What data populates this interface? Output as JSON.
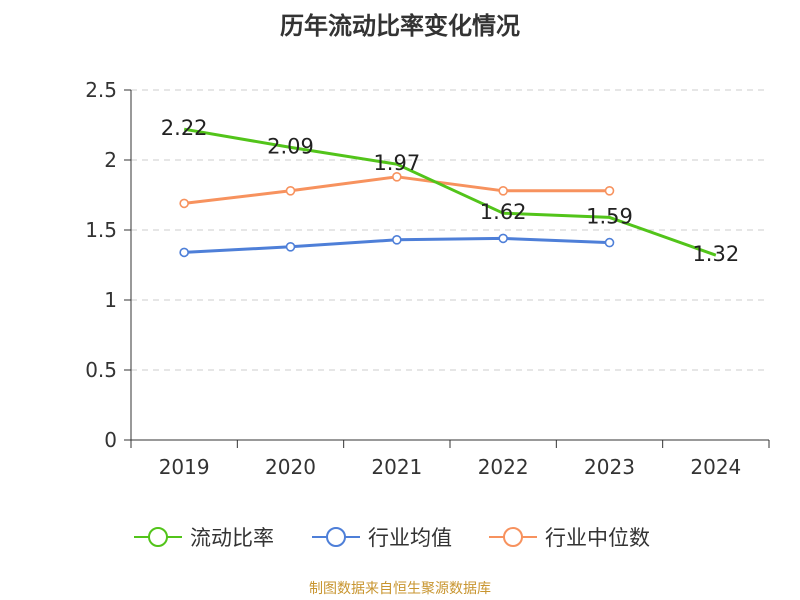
{
  "title": "历年流动比率变化情况",
  "source": "制图数据来自恒生聚源数据库",
  "colors": {
    "current_ratio": "#52c41a",
    "industry_mean": "#4e7fd8",
    "industry_median": "#f7925e",
    "grid": "#cccccc",
    "axis": "#333333"
  },
  "legend": [
    {
      "label": "流动比率",
      "color": "#52c41a"
    },
    {
      "label": "行业均值",
      "color": "#4e7fd8"
    },
    {
      "label": "行业中位数",
      "color": "#f7925e"
    }
  ],
  "chart_data": {
    "type": "line",
    "title": "历年流动比率变化情况",
    "categories": [
      "2019",
      "2020",
      "2021",
      "2022",
      "2023",
      "2024"
    ],
    "ylim": [
      0,
      2.5
    ],
    "yticks": [
      "0",
      "0.5",
      "1",
      "1.5",
      "2",
      "2.5"
    ],
    "grid": true,
    "legend_position": "bottom",
    "series": [
      {
        "name": "流动比率",
        "color": "#52c41a",
        "values": [
          2.22,
          2.09,
          1.97,
          1.62,
          1.59,
          1.32
        ],
        "labels": [
          "2.22",
          "2.09",
          "1.97",
          "1.62",
          "1.59",
          "1.32"
        ],
        "markers": false
      },
      {
        "name": "行业均值",
        "color": "#4e7fd8",
        "values": [
          1.34,
          1.38,
          1.43,
          1.44,
          1.41,
          null
        ],
        "markers": true
      },
      {
        "name": "行业中位数",
        "color": "#f7925e",
        "values": [
          1.69,
          1.78,
          1.88,
          1.78,
          1.78,
          null
        ],
        "markers": true
      }
    ]
  }
}
